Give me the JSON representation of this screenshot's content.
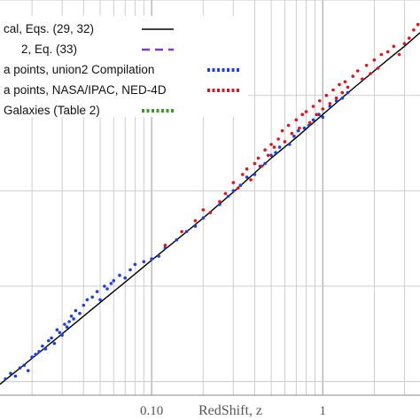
{
  "chart_data": {
    "type": "scatter",
    "title": "",
    "xlabel": "RedShift, z",
    "ylabel": "",
    "x_scale": "log",
    "xlim": [
      0.013,
      3.7
    ],
    "ylim": [
      32.5,
      47.0
    ],
    "grid": true,
    "legend_position": "top-left",
    "x_tick_labels": [
      {
        "value": 0.1,
        "label": "0.10"
      },
      {
        "value": 1,
        "label": "1"
      }
    ],
    "series": [
      {
        "name": "cal, Eqs. (29, 32)",
        "kind": "line",
        "color": "#000000",
        "x": [
          0.013,
          0.02,
          0.03,
          0.05,
          0.07,
          0.1,
          0.15,
          0.2,
          0.3,
          0.5,
          0.7,
          1.0,
          1.5,
          2.0,
          2.5,
          3.0,
          3.7
        ],
        "y": [
          32.9,
          33.85,
          34.75,
          35.9,
          36.65,
          37.45,
          38.35,
          39.0,
          39.95,
          41.2,
          41.95,
          42.8,
          43.75,
          44.4,
          44.9,
          45.3,
          45.8
        ]
      },
      {
        "name": "2, Eq. (33)",
        "kind": "dashed-line",
        "color": "#7d3cc8",
        "x": [],
        "y": []
      },
      {
        "name": "a points, union2 Compilation",
        "kind": "points",
        "color": "#1f3fd8",
        "x": [
          0.014,
          0.015,
          0.016,
          0.017,
          0.018,
          0.019,
          0.02,
          0.021,
          0.022,
          0.023,
          0.024,
          0.025,
          0.026,
          0.027,
          0.028,
          0.029,
          0.03,
          0.031,
          0.032,
          0.033,
          0.034,
          0.035,
          0.036,
          0.038,
          0.04,
          0.042,
          0.045,
          0.048,
          0.05,
          0.053,
          0.055,
          0.058,
          0.06,
          0.065,
          0.07,
          0.075,
          0.08,
          0.09,
          0.1,
          0.11,
          0.12,
          0.14,
          0.16,
          0.18,
          0.2,
          0.22,
          0.25,
          0.28,
          0.3,
          0.33,
          0.36,
          0.4,
          0.43,
          0.46,
          0.5,
          0.53,
          0.56,
          0.6,
          0.64,
          0.68,
          0.72,
          0.78,
          0.83,
          0.88,
          0.95,
          1.0,
          1.1,
          1.2,
          1.3,
          1.4
        ],
        "y": [
          33.1,
          33.3,
          33.2,
          33.5,
          33.6,
          33.4,
          33.9,
          34.0,
          34.1,
          34.3,
          34.2,
          34.5,
          34.6,
          34.4,
          34.9,
          34.8,
          34.7,
          35.1,
          35.0,
          35.2,
          35.4,
          35.3,
          35.6,
          35.5,
          35.8,
          36.0,
          36.1,
          36.3,
          36.0,
          36.5,
          36.4,
          36.6,
          36.7,
          36.9,
          36.8,
          37.1,
          37.3,
          37.4,
          37.5,
          37.6,
          37.9,
          38.2,
          38.5,
          38.7,
          39.0,
          39.2,
          39.5,
          39.8,
          40.0,
          40.2,
          40.5,
          40.6,
          40.9,
          41.0,
          41.3,
          41.4,
          41.6,
          41.8,
          41.7,
          42.0,
          42.2,
          42.3,
          42.4,
          42.6,
          42.8,
          42.7,
          43.1,
          43.3,
          43.4,
          43.6
        ]
      },
      {
        "name": "a points, NASA/IPAC, NED-4D",
        "kind": "points",
        "color": "#e0141e",
        "x": [
          0.12,
          0.15,
          0.18,
          0.2,
          0.22,
          0.25,
          0.27,
          0.3,
          0.32,
          0.34,
          0.36,
          0.38,
          0.4,
          0.42,
          0.44,
          0.46,
          0.48,
          0.5,
          0.52,
          0.55,
          0.58,
          0.6,
          0.63,
          0.66,
          0.7,
          0.73,
          0.76,
          0.8,
          0.84,
          0.88,
          0.92,
          0.96,
          1.0,
          1.05,
          1.1,
          1.15,
          1.2,
          1.25,
          1.3,
          1.35,
          1.4,
          1.5,
          1.6,
          1.7,
          1.8,
          1.9,
          2.0,
          2.1,
          2.2,
          2.4,
          2.6,
          2.8,
          3.0,
          3.2,
          3.4,
          3.6
        ],
        "y": [
          38.0,
          38.5,
          38.9,
          39.3,
          39.2,
          39.6,
          39.9,
          40.3,
          40.1,
          40.6,
          40.8,
          40.4,
          41.0,
          41.2,
          40.9,
          41.5,
          41.3,
          41.7,
          41.6,
          41.9,
          42.2,
          41.8,
          42.4,
          42.1,
          42.6,
          42.3,
          42.8,
          42.9,
          42.5,
          43.1,
          42.8,
          43.3,
          43.0,
          43.5,
          43.2,
          43.7,
          43.4,
          43.9,
          43.6,
          44.0,
          43.8,
          44.2,
          44.4,
          44.1,
          44.6,
          44.3,
          44.8,
          44.5,
          45.0,
          45.1,
          45.3,
          45.0,
          45.4,
          45.6,
          45.9,
          46.1
        ]
      },
      {
        "name": "Galaxies (Table 2)",
        "kind": "points",
        "color": "#3a9a2a",
        "x": [],
        "y": []
      }
    ]
  }
}
